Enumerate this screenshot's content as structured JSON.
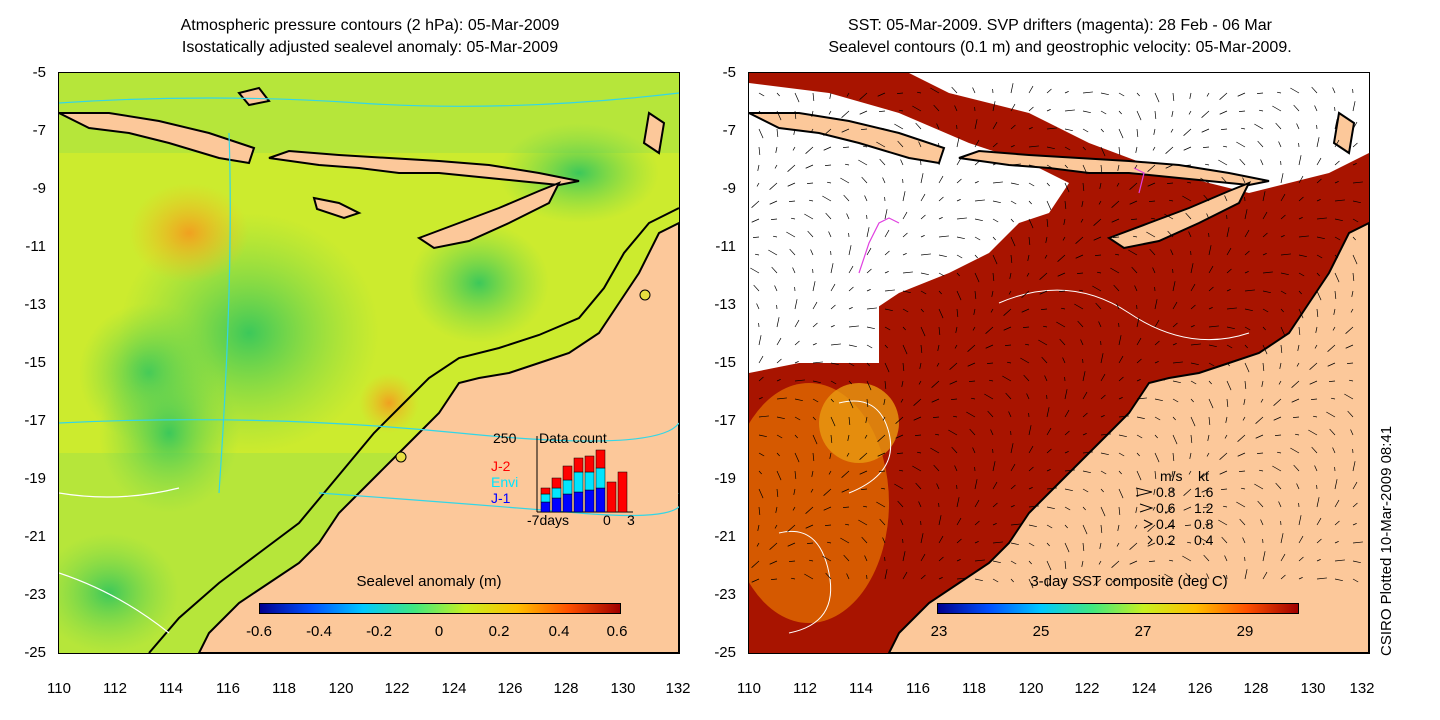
{
  "left_panel": {
    "title_line1": "Atmospheric pressure contours (2 hPa): 05-Mar-2009",
    "title_line2": "Isostatically adjusted sealevel anomaly: 05-Mar-2009",
    "colorbar_title": "Sealevel anomaly (m)",
    "colorbar_ticks": [
      "-0.6",
      "-0.4",
      "-0.2",
      "0",
      "0.2",
      "0.4",
      "0.6"
    ],
    "data_count": {
      "max_label": "250",
      "title": "Data count",
      "sat1": "J-2",
      "sat2": "Envi",
      "sat3": "J-1",
      "x_start": "-7days",
      "x_zero": "0",
      "x_end": "3",
      "colors": {
        "sat1": "#ff0000",
        "sat2": "#00e5ff",
        "sat3": "#0000ff"
      }
    }
  },
  "right_panel": {
    "title_line1": "SST: 05-Mar-2009. SVP drifters (magenta): 28 Feb - 06 Mar",
    "title_line2": "Sealevel contours (0.1 m) and geostrophic velocity: 05-Mar-2009.",
    "colorbar_title": "3-day SST composite (deg C)",
    "colorbar_ticks": [
      "23",
      "25",
      "27",
      "29"
    ],
    "speed_legend": {
      "header_ms": "m/s",
      "header_kt": "kt",
      "rows": [
        {
          "ms": "0.8",
          "kt": "1.6"
        },
        {
          "ms": "0.6",
          "kt": "1.2"
        },
        {
          "ms": "0.4",
          "kt": "0.8"
        },
        {
          "ms": "0.2",
          "kt": "0.4"
        }
      ]
    }
  },
  "axes": {
    "y_ticks": [
      "-5",
      "-7",
      "-9",
      "-11",
      "-13",
      "-15",
      "-17",
      "-19",
      "-21",
      "-23",
      "-25"
    ],
    "x_ticks": [
      "110",
      "112",
      "114",
      "116",
      "118",
      "120",
      "122",
      "124",
      "126",
      "128",
      "130",
      "132"
    ]
  },
  "credit": "CSIRO Plotted 10-Mar-2009 08:41",
  "colors": {
    "land": "#fcc89a",
    "ocean_green": "#a8e63a",
    "ocean_yellow": "#e8ef20",
    "sst_red": "#a81400",
    "cloud": "#ffffff",
    "pressure_contour": "#33d6e6",
    "drifter": "#e040e0"
  }
}
